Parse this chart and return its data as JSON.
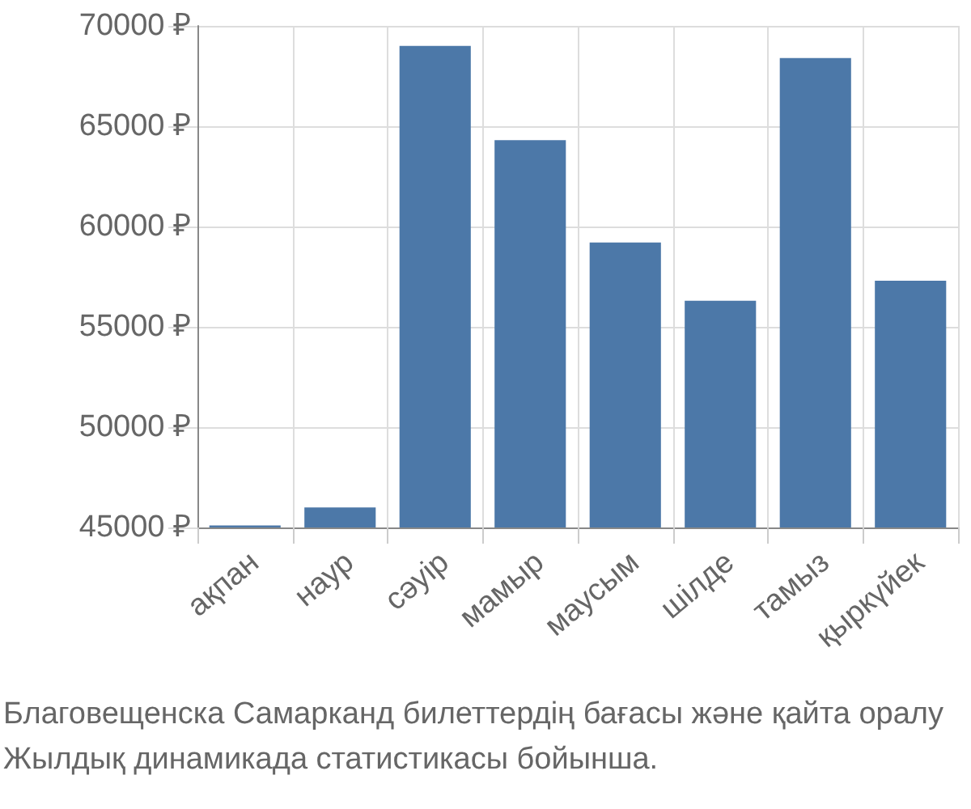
{
  "chart_data": {
    "type": "bar",
    "categories": [
      "ақпан",
      "наур",
      "сәуір",
      "мамыр",
      "маусым",
      "шілде",
      "тамыз",
      "қыркүйек"
    ],
    "values": [
      45100,
      46000,
      69000,
      64300,
      59200,
      56300,
      68400,
      57300
    ],
    "color": "#4c78a8",
    "ylim": [
      45000,
      70000
    ],
    "yticks": [
      {
        "value": 45000,
        "label": "45000 ₽"
      },
      {
        "value": 50000,
        "label": "50000 ₽"
      },
      {
        "value": 55000,
        "label": "55000 ₽"
      },
      {
        "value": 60000,
        "label": "60000 ₽"
      },
      {
        "value": 65000,
        "label": "65000 ₽"
      },
      {
        "value": 70000,
        "label": "70000 ₽"
      }
    ],
    "grid": true,
    "annotations": [
      "Благовещенска Самарканд билеттердің бағасы және қайта оралу",
      "Жылдық динамикада статистикасы бойынша."
    ]
  }
}
